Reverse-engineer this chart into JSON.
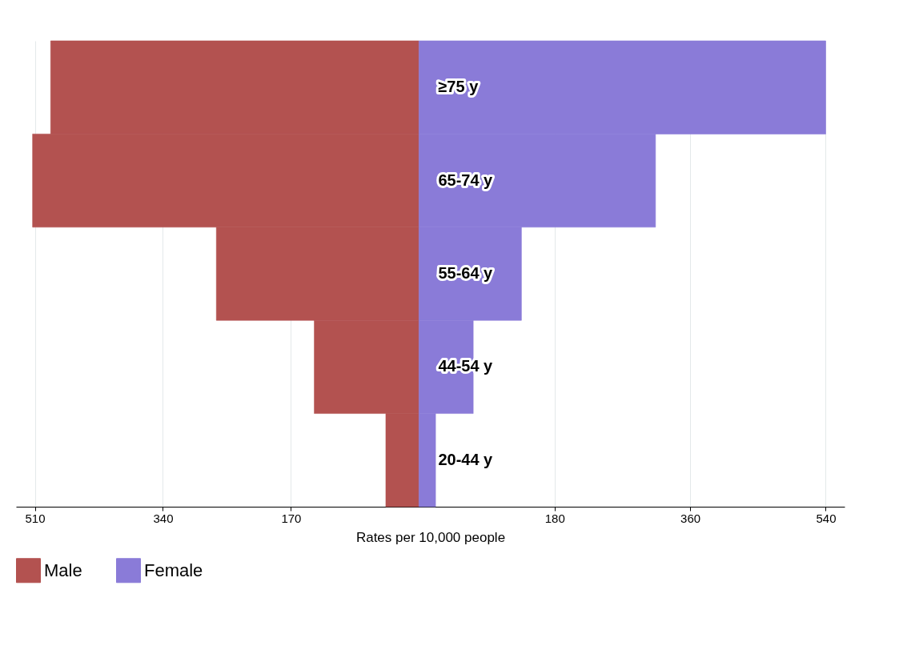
{
  "chart_data": {
    "type": "bar",
    "orientation": "horizontal",
    "xlabel": "Rates per 10,000 people",
    "categories": [
      "≥75 y",
      "65-74 y",
      "55-64 y",
      "44-54 y",
      "20-44 y"
    ],
    "series": [
      {
        "name": "Male",
        "color": "#b35250",
        "values": [
          -489,
          -513,
          -269,
          -139,
          -44
        ]
      },
      {
        "name": "Female",
        "color": "#8a7bd8",
        "values": [
          540,
          314,
          136,
          72,
          22
        ]
      }
    ],
    "xlim": [
      -535,
      565
    ],
    "xticks": [
      {
        "value": -510,
        "label": "510"
      },
      {
        "value": -340,
        "label": "340"
      },
      {
        "value": -170,
        "label": "170"
      },
      180,
      360,
      540
    ],
    "stacked": true,
    "grid": "x",
    "legend": "bottom"
  }
}
